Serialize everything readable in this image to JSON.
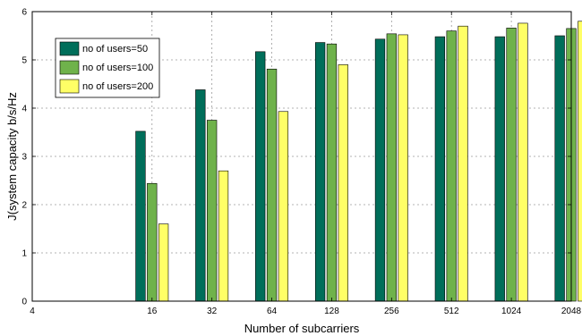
{
  "chart_data": {
    "type": "bar",
    "title": "",
    "xlabel": "Number of subcarriers",
    "ylabel": "J(system capacity b/s/Hz",
    "x_ticks": [
      "4",
      "16",
      "32",
      "64",
      "128",
      "256",
      "512",
      "1024",
      "2048"
    ],
    "categories": [
      "16",
      "32",
      "64",
      "128",
      "256",
      "512",
      "1024",
      "2048"
    ],
    "x_scale": "log2",
    "xlim": [
      4,
      2048
    ],
    "ylim": [
      0,
      6
    ],
    "y_ticks": [
      "0",
      "1",
      "2",
      "3",
      "4",
      "5",
      "6"
    ],
    "grid": true,
    "legend_position": "top-left",
    "series": [
      {
        "name": "no of users=50",
        "color": "#006e5a",
        "values": [
          3.52,
          4.38,
          5.17,
          5.36,
          5.43,
          5.48,
          5.48,
          5.5
        ]
      },
      {
        "name": "no of users=100",
        "color": "#6fb24b",
        "values": [
          2.44,
          3.75,
          4.81,
          5.33,
          5.54,
          5.6,
          5.66,
          5.65
        ]
      },
      {
        "name": "no of users=200",
        "color": "#ffff66",
        "values": [
          1.6,
          2.7,
          3.93,
          4.9,
          5.52,
          5.7,
          5.76,
          5.8
        ]
      }
    ]
  }
}
